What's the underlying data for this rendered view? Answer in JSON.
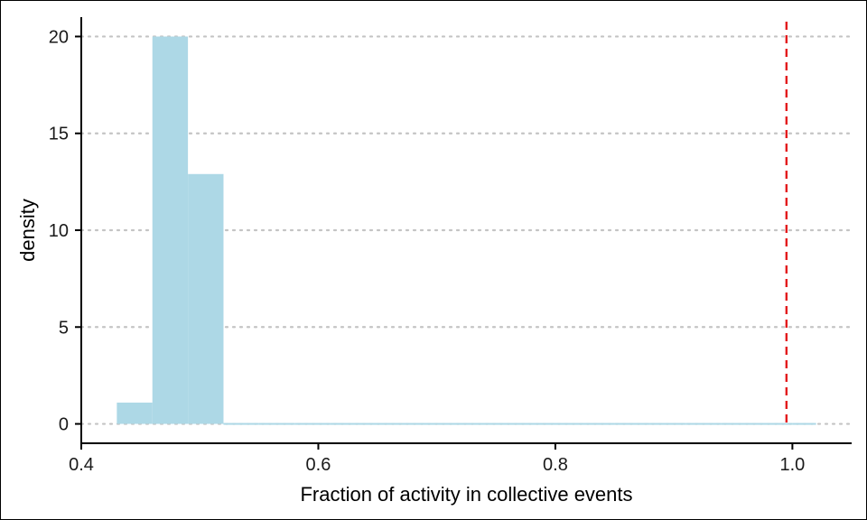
{
  "chart_data": {
    "type": "bar",
    "subtype": "histogram",
    "title": "",
    "xlabel": "Fraction of activity in collective events",
    "ylabel": "density",
    "xlim": [
      0.4,
      1.05
    ],
    "ylim": [
      -1,
      21
    ],
    "x_ticks": [
      0.4,
      0.6,
      0.8,
      1.0
    ],
    "x_tick_labels": [
      "0.4",
      "0.6",
      "0.8",
      "1.0"
    ],
    "y_ticks": [
      0,
      5,
      10,
      15,
      20
    ],
    "y_tick_labels": [
      "0",
      "5",
      "10",
      "15",
      "20"
    ],
    "grid": "horizontal dotted",
    "bin_width": 0.03,
    "bins": [
      {
        "x0": 0.43,
        "x1": 0.46,
        "density": 1.1
      },
      {
        "x0": 0.46,
        "x1": 0.49,
        "density": 20.0
      },
      {
        "x0": 0.49,
        "x1": 0.52,
        "density": 12.9
      },
      {
        "x0": 0.52,
        "x1": 0.55,
        "density": 0
      },
      {
        "x0": 0.55,
        "x1": 0.58,
        "density": 0
      },
      {
        "x0": 0.58,
        "x1": 0.61,
        "density": 0
      },
      {
        "x0": 0.61,
        "x1": 0.64,
        "density": 0
      },
      {
        "x0": 0.64,
        "x1": 0.67,
        "density": 0
      },
      {
        "x0": 0.67,
        "x1": 0.7,
        "density": 0
      },
      {
        "x0": 0.7,
        "x1": 0.73,
        "density": 0
      },
      {
        "x0": 0.73,
        "x1": 0.76,
        "density": 0
      },
      {
        "x0": 0.76,
        "x1": 0.79,
        "density": 0
      },
      {
        "x0": 0.79,
        "x1": 0.82,
        "density": 0
      },
      {
        "x0": 0.82,
        "x1": 0.85,
        "density": 0
      },
      {
        "x0": 0.85,
        "x1": 0.88,
        "density": 0
      },
      {
        "x0": 0.88,
        "x1": 0.91,
        "density": 0
      },
      {
        "x0": 0.91,
        "x1": 0.94,
        "density": 0
      },
      {
        "x0": 0.94,
        "x1": 0.97,
        "density": 0
      },
      {
        "x0": 0.97,
        "x1": 1.0,
        "density": 0
      },
      {
        "x0": 1.0,
        "x1": 1.02,
        "density": 0
      }
    ],
    "reference_line": {
      "x": 0.995,
      "style": "dashed"
    },
    "colors": {
      "bars": "#add8e6",
      "reference_line": "#e31a1c",
      "grid": "#c4c4c4",
      "axis": "#000000"
    }
  }
}
